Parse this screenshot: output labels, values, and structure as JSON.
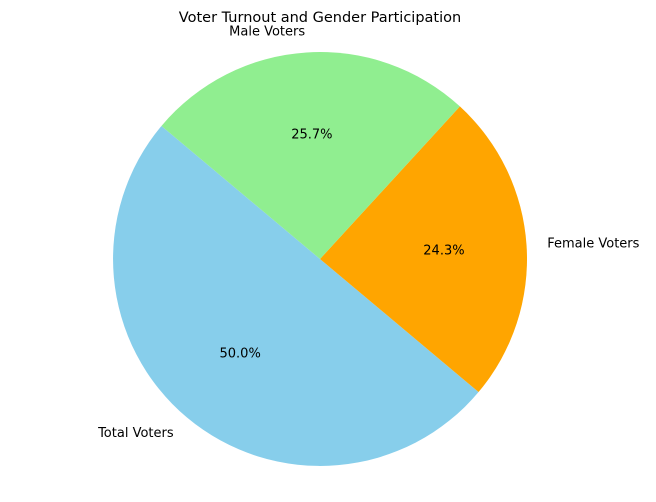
{
  "chart_data": {
    "type": "pie",
    "title": "Voter Turnout and Gender Participation",
    "categories": [
      "Total Voters",
      "Female Voters",
      "Male Voters"
    ],
    "values": [
      50.0,
      24.3,
      25.7
    ],
    "percent_labels": [
      "50.0%",
      "24.3%",
      "25.7%"
    ],
    "colors": [
      "#87CEEB",
      "#FFA500",
      "#90EE90"
    ],
    "start_angle_deg": 140,
    "direction": "counterclockwise",
    "legend": "none"
  }
}
